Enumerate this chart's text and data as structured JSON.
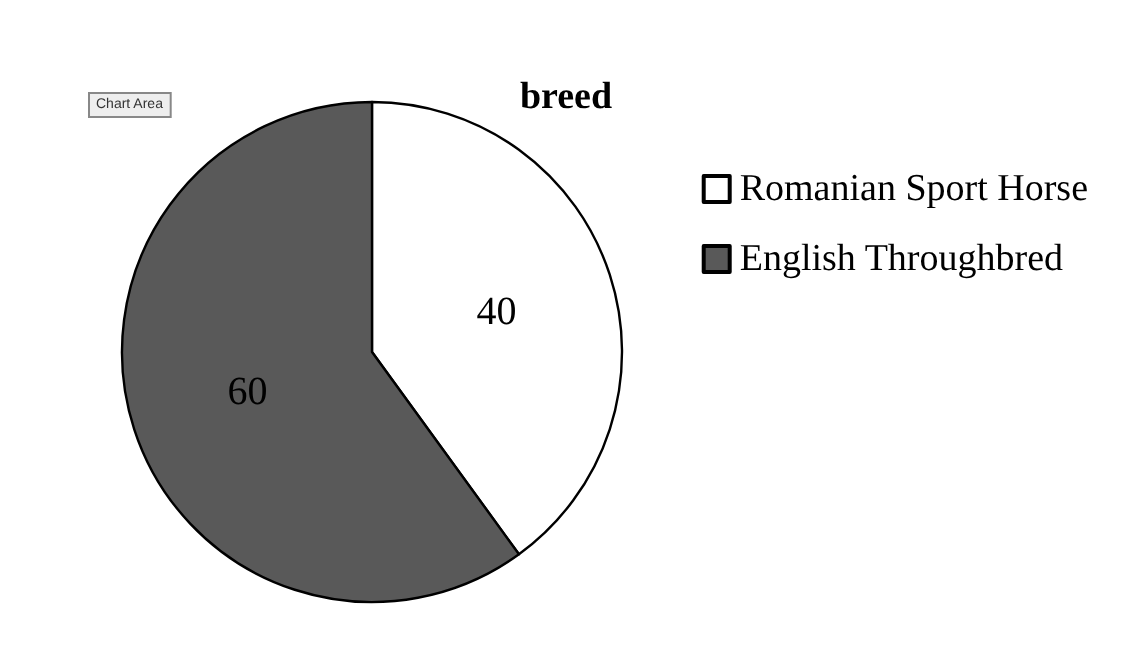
{
  "chart_data": {
    "type": "pie",
    "title": "breed",
    "categories": [
      "Romanian Sport Horse",
      "English Throughbred"
    ],
    "values": [
      40,
      60
    ],
    "colors": [
      "#ffffff",
      "#595959"
    ],
    "data_labels": true,
    "legend": "right",
    "annotations": [
      "Chart Area"
    ]
  }
}
